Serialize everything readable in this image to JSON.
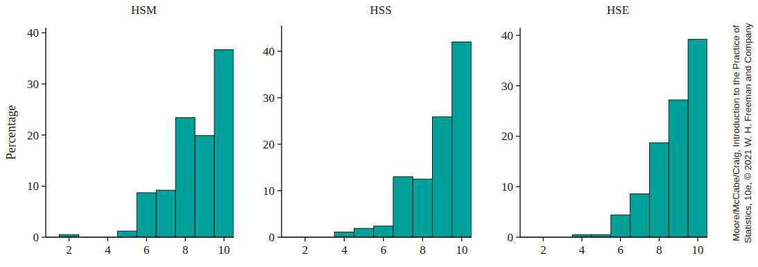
{
  "chart_data": [
    {
      "type": "histogram",
      "title": "HSM",
      "y_label": "Percentage",
      "bins": [
        1.5,
        2.5,
        3.5,
        4.5,
        5.5,
        6.5,
        7.5,
        8.5,
        9.5,
        10.5
      ],
      "values": [
        0.5,
        0,
        0,
        1.2,
        8.7,
        9.2,
        23.4,
        19.9,
        36.7
      ],
      "color": "#00a19a",
      "xlim": [
        0.8,
        10.5
      ],
      "ylim": [
        0,
        41
      ],
      "xticks": [
        2,
        4,
        6,
        8,
        10
      ],
      "yticks": [
        0,
        10,
        20,
        30,
        40
      ]
    },
    {
      "type": "histogram",
      "title": "HSS",
      "bins": [
        1.5,
        2.5,
        3.5,
        4.5,
        5.5,
        6.5,
        7.5,
        8.5,
        9.5,
        10.5
      ],
      "values": [
        0,
        0,
        1.1,
        1.9,
        2.4,
        13.0,
        12.5,
        25.9,
        42.0
      ],
      "color": "#00a19a",
      "xlim": [
        0.8,
        10.5
      ],
      "ylim": [
        0,
        45.5
      ],
      "xticks": [
        2,
        4,
        6,
        8,
        10
      ],
      "yticks": [
        0,
        10,
        20,
        30,
        40
      ]
    },
    {
      "type": "histogram",
      "title": "HSE",
      "bins": [
        1.5,
        2.5,
        3.5,
        4.5,
        5.5,
        6.5,
        7.5,
        8.5,
        9.5,
        10.5
      ],
      "values": [
        0,
        0,
        0.5,
        0.5,
        4.4,
        8.6,
        18.7,
        27.2,
        39.2
      ],
      "color": "#00a19a",
      "xlim": [
        0.8,
        10.5
      ],
      "ylim": [
        0,
        41.5
      ],
      "xticks": [
        2,
        4,
        6,
        8,
        10
      ],
      "yticks": [
        0,
        10,
        20,
        30,
        40
      ]
    }
  ],
  "credit": [
    "Moore/McCabe/Craig, Introduction to the Practice of",
    "Statistics, 10e, © 2021 W. H. Freeman and Company"
  ]
}
